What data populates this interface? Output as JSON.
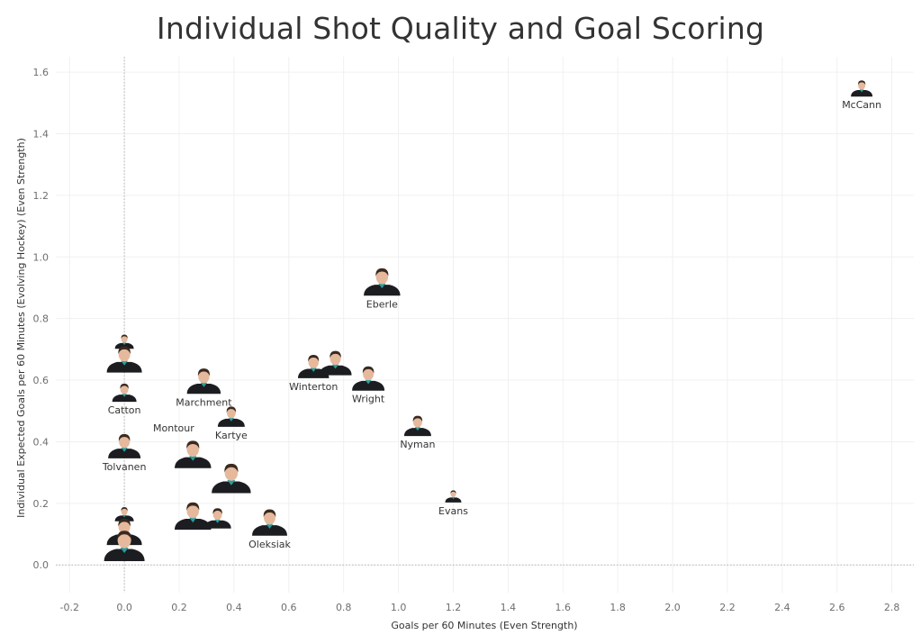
{
  "chart_data": {
    "type": "scatter",
    "title": "Individual Shot Quality and Goal Scoring",
    "xlabel": "Goals per 60 Minutes (Even Strength)",
    "ylabel": "Individual Expected Goals per 60 Minutes (Evolving Hockey) (Even Strength)",
    "xlim": [
      -0.25,
      2.88
    ],
    "ylim": [
      -0.09,
      1.65
    ],
    "xticks": [
      -0.2,
      0.0,
      0.2,
      0.4,
      0.6,
      0.8,
      1.0,
      1.2,
      1.4,
      1.6,
      1.8,
      2.0,
      2.2,
      2.4,
      2.6,
      2.8
    ],
    "xtick_labels": [
      "-0.2",
      "0.0",
      "0.2",
      "0.4",
      "0.6",
      "0.8",
      "1.0",
      "1.2",
      "1.4",
      "1.6",
      "1.8",
      "2.0",
      "2.2",
      "2.4",
      "2.6",
      "2.8"
    ],
    "yticks": [
      0.0,
      0.2,
      0.4,
      0.6,
      0.8,
      1.0,
      1.2,
      1.4,
      1.6
    ],
    "ytick_labels": [
      "0.0",
      "0.2",
      "0.4",
      "0.6",
      "0.8",
      "1.0",
      "1.2",
      "1.4",
      "1.6"
    ],
    "grid": true,
    "zero_reference_lines": true,
    "marker": "player-headshot",
    "jersey_color": "#1b1d21",
    "points": [
      {
        "x": 2.69,
        "y": 1.53,
        "label": "McCann",
        "size": 0.8
      },
      {
        "x": 0.94,
        "y": 0.89,
        "label": "Eberle",
        "size": 1.35
      },
      {
        "x": 0.29,
        "y": 0.57,
        "label": "Marchment",
        "size": 1.25
      },
      {
        "x": 0.69,
        "y": 0.62,
        "label": "Winterton",
        "size": 1.15
      },
      {
        "x": 0.77,
        "y": 0.63,
        "label": "",
        "size": 1.2
      },
      {
        "x": 0.89,
        "y": 0.58,
        "label": "Wright",
        "size": 1.2
      },
      {
        "x": 0.0,
        "y": 0.71,
        "label": "",
        "size": 0.7
      },
      {
        "x": 0.0,
        "y": 0.64,
        "label": "",
        "size": 1.3
      },
      {
        "x": 0.0,
        "y": 0.54,
        "label": "Catton",
        "size": 0.9
      },
      {
        "x": 0.0,
        "y": 0.36,
        "label": "Tolvanen",
        "size": 1.2
      },
      {
        "x": 0.25,
        "y": 0.33,
        "label": "",
        "size": 1.35
      },
      {
        "x": 0.39,
        "y": 0.46,
        "label": "Kartye",
        "size": 1.0
      },
      {
        "x": 0.39,
        "y": 0.25,
        "label": "",
        "size": 1.45
      },
      {
        "x": 1.07,
        "y": 0.43,
        "label": "Nyman",
        "size": 1.0
      },
      {
        "x": 1.2,
        "y": 0.21,
        "label": "Evans",
        "size": 0.6
      },
      {
        "x": 0.25,
        "y": 0.13,
        "label": "",
        "size": 1.35
      },
      {
        "x": 0.34,
        "y": 0.13,
        "label": "",
        "size": 1.0
      },
      {
        "x": 0.53,
        "y": 0.11,
        "label": "Oleksiak",
        "size": 1.3
      },
      {
        "x": 0.0,
        "y": 0.15,
        "label": "",
        "size": 0.7
      },
      {
        "x": 0.0,
        "y": 0.08,
        "label": "",
        "size": 1.3
      },
      {
        "x": 0.0,
        "y": 0.03,
        "label": "",
        "size": 1.5
      }
    ],
    "extra_labels": [
      {
        "x": 0.18,
        "y": 0.445,
        "text": "Montour"
      }
    ]
  }
}
